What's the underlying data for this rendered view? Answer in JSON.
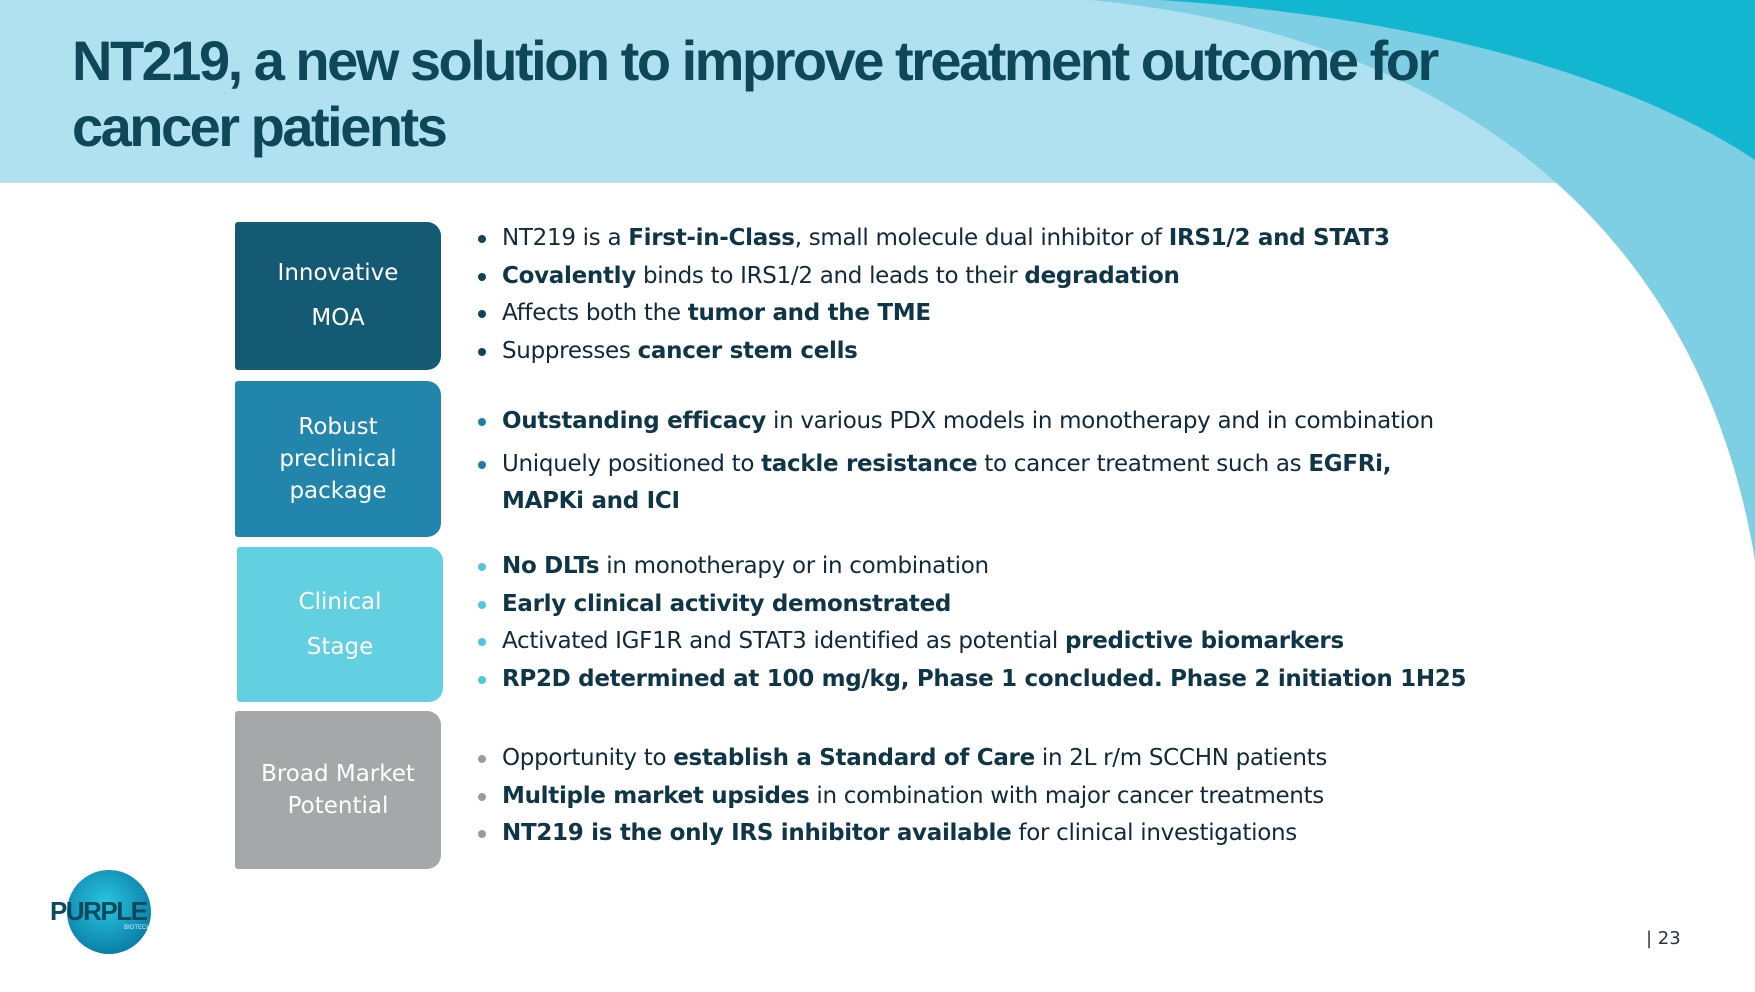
{
  "slide": {
    "title": "NT219, a new solution to improve treatment outcome for cancer patients",
    "page_number": "| 23"
  },
  "logo": {
    "text": "PURPLE",
    "subtext": "BIOTECH"
  },
  "colors": {
    "title": "#0d4758",
    "header_band": "#b0e1f1",
    "accent_cyan": "#12b6d0",
    "box_1": "#145a72",
    "box_2": "#2286ac",
    "box_3": "#62d0e0",
    "box_4": "#a6a7a9"
  },
  "sections": [
    {
      "label_lines": [
        "Innovative",
        "MOA"
      ],
      "bullets": [
        [
          {
            "t": "NT219 is a "
          },
          {
            "t": "First-in-Class",
            "b": true
          },
          {
            "t": ", small molecule dual inhibitor of "
          },
          {
            "t": "IRS1/2 and STAT3",
            "b": true
          }
        ],
        [
          {
            "t": "Covalently",
            "b": true
          },
          {
            "t": " binds to IRS1/2 and leads to their "
          },
          {
            "t": "degradation",
            "b": true
          }
        ],
        [
          {
            "t": "Affects both the "
          },
          {
            "t": "tumor and the TME",
            "b": true
          }
        ],
        [
          {
            "t": "Suppresses "
          },
          {
            "t": "cancer stem cells",
            "b": true
          }
        ]
      ]
    },
    {
      "label_lines": [
        "Robust",
        "preclinical",
        "package"
      ],
      "bullets": [
        [
          {
            "t": "Outstanding efficacy",
            "b": true
          },
          {
            "t": " in various PDX models in monotherapy and in combination"
          }
        ],
        [
          {
            "t": "Uniquely positioned to "
          },
          {
            "t": "tackle resistance",
            "b": true
          },
          {
            "t": " to cancer treatment such as "
          },
          {
            "t": "EGFRi, MAPKi and ICI",
            "b": true
          }
        ]
      ]
    },
    {
      "label_lines": [
        "Clinical",
        "Stage"
      ],
      "bullets": [
        [
          {
            "t": "No DLTs",
            "b": true
          },
          {
            "t": " in monotherapy or in combination"
          }
        ],
        [
          {
            "t": "Early clinical activity demonstrated",
            "b": true
          }
        ],
        [
          {
            "t": "Activated IGF1R and STAT3 identified as potential "
          },
          {
            "t": "predictive biomarkers",
            "b": true
          }
        ],
        [
          {
            "t": "RP2D determined at 100 mg/kg, Phase 1 concluded. Phase 2 initiation 1H25",
            "b": true
          }
        ]
      ]
    },
    {
      "label_lines": [
        "Broad Market",
        "Potential"
      ],
      "bullets": [
        [
          {
            "t": "Opportunity to "
          },
          {
            "t": "establish a Standard of Care",
            "b": true
          },
          {
            "t": " in 2L r/m SCCHN patients"
          }
        ],
        [
          {
            "t": "Multiple market upsides",
            "b": true
          },
          {
            "t": " in combination with major cancer treatments"
          }
        ],
        [
          {
            "t": "NT219 is the only IRS inhibitor available",
            "b": true
          },
          {
            "t": " for clinical investigations"
          }
        ]
      ]
    }
  ]
}
